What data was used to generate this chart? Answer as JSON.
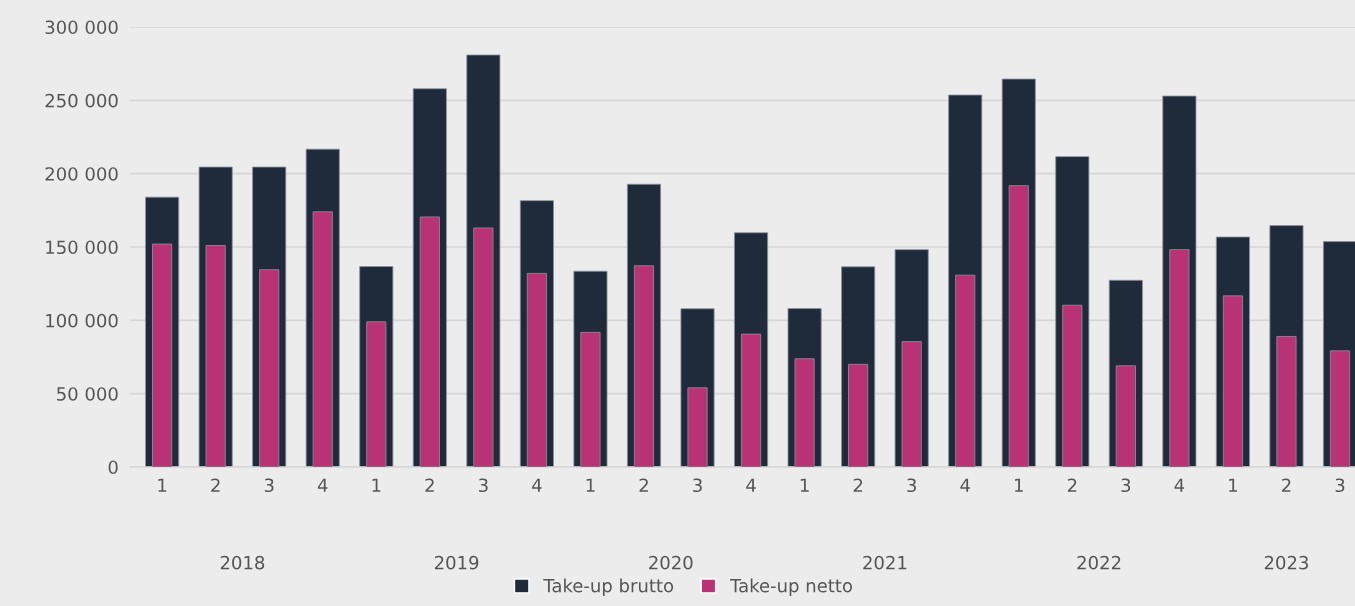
{
  "chart_data": {
    "type": "bar",
    "categories": [
      "1",
      "2",
      "3",
      "4",
      "1",
      "2",
      "3",
      "4",
      "1",
      "2",
      "3",
      "4",
      "1",
      "2",
      "3",
      "4",
      "1",
      "2",
      "3",
      "4",
      "1",
      "2",
      "3"
    ],
    "series": [
      {
        "name": "Take-up brutto",
        "color": "#1f2b3a",
        "values": [
          184000,
          204500,
          204500,
          216700,
          136700,
          257900,
          280900,
          181600,
          133500,
          192800,
          107900,
          159700,
          108000,
          136500,
          148200,
          253600,
          264500,
          211600,
          127300,
          252900,
          156800,
          164600,
          153700
        ]
      },
      {
        "name": "Take-up netto",
        "color": "#b83275",
        "values": [
          152000,
          151000,
          134500,
          174000,
          99000,
          170500,
          163000,
          132000,
          91800,
          137200,
          54000,
          90600,
          73800,
          70000,
          85500,
          130800,
          191800,
          110300,
          69000,
          148200,
          116700,
          89000,
          79200
        ]
      }
    ],
    "annotations": [
      "2018",
      "2019",
      "2020",
      "2021",
      "2022",
      "2023"
    ],
    "ylim": [
      0,
      300000
    ],
    "yticks": [
      {
        "value": 0,
        "label": "0"
      },
      {
        "value": 50000,
        "label": "50 000"
      },
      {
        "value": 100000,
        "label": "100 000"
      },
      {
        "value": 150000,
        "label": "150 000"
      },
      {
        "value": 200000,
        "label": "200 000"
      },
      {
        "value": 250000,
        "label": "250 000"
      },
      {
        "value": 300000,
        "label": "300 000"
      }
    ],
    "grid": "y",
    "legend": "bottom"
  }
}
